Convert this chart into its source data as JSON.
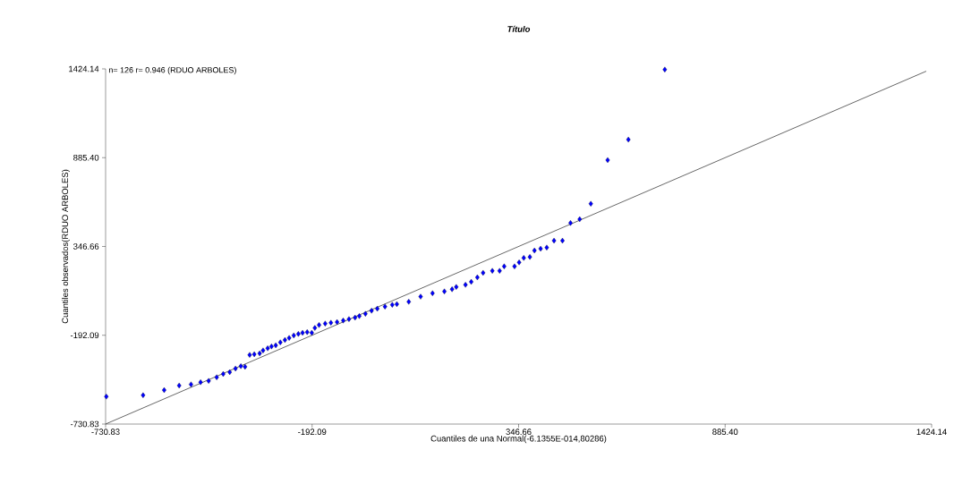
{
  "chart_data": {
    "type": "scatter",
    "title": "Título",
    "xlabel": "Cuantiles de una Normal(-6.1355E-014,80286)",
    "ylabel": "Cuantiles observados(RDUO ARBOLES)",
    "annotations": [
      "n= 126 r= 0.946 (RDUO ARBOLES)"
    ],
    "xlim": [
      -730.83,
      1424.14
    ],
    "ylim": [
      -730.83,
      1424.14
    ],
    "xticks": [
      -730.83,
      -192.09,
      346.66,
      {
        "value": 885.4,
        "label": "885.40"
      },
      1424.14
    ],
    "yticks": [
      -730.83,
      -192.09,
      346.66,
      {
        "value": 885.4,
        "label": "885.40"
      },
      1424.14
    ],
    "grid": false,
    "marker": "diamond",
    "series": [
      {
        "color": "#0000ff",
        "x": [
          -729,
          -633,
          -578,
          -539,
          -508,
          -483,
          -462,
          -441,
          -424,
          -407,
          -392,
          -378,
          -367,
          -355,
          -343,
          -329,
          -320,
          -308,
          -298,
          -287,
          -275,
          -263,
          -252,
          -240,
          -228,
          -217,
          -205,
          -193,
          -185,
          -174,
          -158,
          -143,
          -127,
          -111,
          -96,
          -80,
          -69,
          -53,
          -37,
          -22,
          -2,
          17,
          29,
          60,
          91,
          122,
          153,
          173,
          184,
          208,
          223,
          239,
          254,
          278,
          297,
          309,
          336,
          348,
          360,
          376,
          388,
          404,
          420,
          439,
          461,
          482,
          506,
          535,
          579,
          633,
          728
        ],
        "values": [
          -564,
          -556,
          -525,
          -497,
          -490,
          -477,
          -469,
          -447,
          -427,
          -416,
          -394,
          -380,
          -383,
          -311,
          -307,
          -302,
          -284,
          -271,
          -260,
          -253,
          -235,
          -221,
          -208,
          -193,
          -184,
          -177,
          -173,
          -177,
          -148,
          -130,
          -121,
          -116,
          -112,
          -103,
          -94,
          -85,
          -76,
          -62,
          -43,
          -31,
          -18,
          -7,
          -3,
          11,
          42,
          63,
          74,
          87,
          101,
          114,
          132,
          159,
          187,
          199,
          199,
          226,
          226,
          250,
          277,
          283,
          322,
          333,
          340,
          382,
          382,
          489,
          512,
          606,
          871,
          995,
          1420
        ]
      },
      {
        "type": "line",
        "color": "#000000",
        "marker": "none",
        "x": [
          -730,
          1410
        ],
        "values": [
          -730,
          1410
        ]
      }
    ]
  }
}
